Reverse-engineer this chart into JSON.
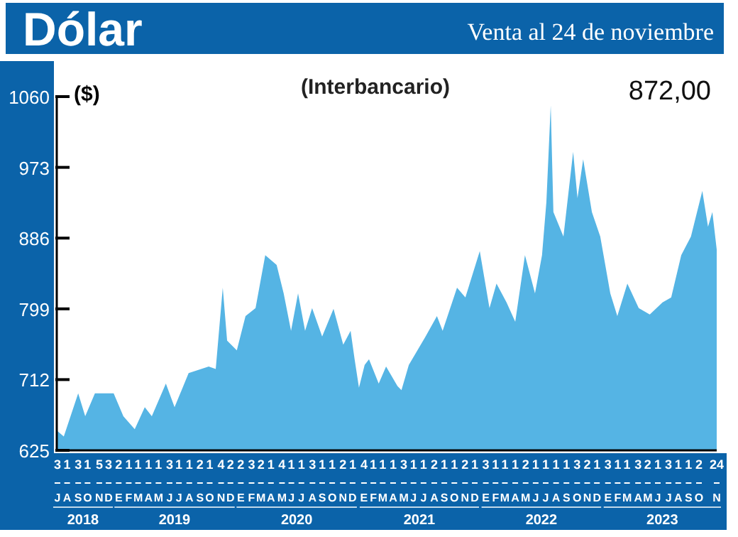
{
  "chart_data": {
    "type": "area",
    "title": "Dólar",
    "subtitle": "Venta al 24 de noviembre",
    "ylabel": "($)",
    "annotations": [
      "(Interbancario)",
      "872,00",
      "2018",
      "2019",
      "2020",
      "2021",
      "2022",
      "2023",
      "J",
      "A",
      "S",
      "O",
      "N",
      "D",
      "E",
      "F",
      "M",
      "A",
      "M",
      "J",
      "J",
      "A",
      "S",
      "O",
      "N",
      "D",
      "E",
      "F",
      "M",
      "A",
      "M",
      "J",
      "J",
      "A",
      "S",
      "O",
      "N",
      "D",
      "E",
      "F",
      "M",
      "A",
      "M",
      "J",
      "J",
      "A",
      "S",
      "O",
      "N",
      "D",
      "E",
      "F",
      "M",
      "A",
      "M",
      "J",
      "J",
      "A",
      "S",
      "O",
      "N",
      "D",
      "E",
      "F",
      "M",
      "A",
      "M",
      "J",
      "J",
      "A",
      "S",
      "O",
      "N"
    ],
    "x": [
      "2018-07-02",
      "2018-07-22",
      "2018-09-03",
      "2018-09-24",
      "2018-10-23",
      "2018-12-18",
      "2019-01-16",
      "2019-02-19",
      "2019-03-21",
      "2019-04-11",
      "2019-05-23",
      "2019-06-18",
      "2019-07-30",
      "2019-09-28",
      "2019-10-19",
      "2019-11-09",
      "2019-11-22",
      "2019-12-21",
      "2020-01-16",
      "2020-02-15",
      "2020-03-15",
      "2020-04-18",
      "2020-05-09",
      "2020-05-31",
      "2020-06-21",
      "2020-07-12",
      "2020-08-02",
      "2020-09-01",
      "2020-10-05",
      "2020-11-03",
      "2020-11-25",
      "2020-12-07",
      "2020-12-20",
      "2021-01-06",
      "2021-01-19",
      "2021-02-17",
      "2021-03-11",
      "2021-04-14",
      "2021-04-26",
      "2021-05-18",
      "2021-07-07",
      "2021-08-10",
      "2021-08-27",
      "2021-10-09",
      "2021-11-03",
      "2021-12-16",
      "2022-01-14",
      "2022-02-04",
      "2022-03-06",
      "2022-04-01",
      "2022-04-30",
      "2022-05-30",
      "2022-06-20",
      "2022-07-03",
      "2022-07-16",
      "2022-07-24",
      "2022-08-23",
      "2022-09-21",
      "2022-10-04",
      "2022-10-21",
      "2022-11-16",
      "2022-12-11",
      "2023-01-10",
      "2023-01-31",
      "2023-03-02",
      "2023-04-05",
      "2023-05-08",
      "2023-06-15",
      "2023-07-11",
      "2023-08-10",
      "2023-09-08",
      "2023-10-12",
      "2023-10-29",
      "2023-11-11",
      "2023-11-24"
    ],
    "series": [
      {
        "color": "#55b4e4",
        "values": [
          649,
          642,
          695,
          667,
          695,
          695,
          667,
          651,
          678,
          667,
          707,
          678,
          720,
          728,
          725,
          825,
          760,
          748,
          790,
          800,
          865,
          853,
          818,
          772,
          818,
          772,
          800,
          765,
          799,
          755,
          772,
          737,
          702,
          730,
          737,
          707,
          728,
          704,
          699,
          730,
          765,
          790,
          772,
          825,
          813,
          870,
          800,
          830,
          807,
          783,
          865,
          818,
          865,
          930,
          1049,
          918,
          888,
          992,
          935,
          983,
          918,
          888,
          818,
          790,
          830,
          800,
          792,
          807,
          813,
          865,
          888,
          944,
          900,
          918,
          872
        ]
      }
    ],
    "xlim": [
      "2018-07-01",
      "2023-11-24"
    ],
    "xticks": [
      {
        "value": "2018-07-03",
        "label": "3"
      },
      {
        "value": "2018-08-01",
        "label": "1"
      },
      {
        "value": "2018-09-03",
        "label": "3"
      },
      {
        "value": "2018-10-01",
        "label": "1"
      },
      {
        "value": "2018-11-05",
        "label": "5"
      },
      {
        "value": "2018-12-03",
        "label": "3"
      },
      {
        "value": "2019-01-02",
        "label": "2"
      },
      {
        "value": "2019-02-01",
        "label": "1"
      },
      {
        "value": "2019-03-01",
        "label": "1"
      },
      {
        "value": "2019-04-01",
        "label": "1"
      },
      {
        "value": "2019-05-01",
        "label": "1"
      },
      {
        "value": "2019-06-03",
        "label": "3"
      },
      {
        "value": "2019-07-01",
        "label": "1"
      },
      {
        "value": "2019-08-01",
        "label": "1"
      },
      {
        "value": "2019-09-02",
        "label": "2"
      },
      {
        "value": "2019-10-01",
        "label": "1"
      },
      {
        "value": "2019-11-04",
        "label": "4"
      },
      {
        "value": "2019-12-02",
        "label": "2"
      },
      {
        "value": "2020-01-02",
        "label": "2"
      },
      {
        "value": "2020-02-03",
        "label": "3"
      },
      {
        "value": "2020-03-02",
        "label": "2"
      },
      {
        "value": "2020-04-01",
        "label": "1"
      },
      {
        "value": "2020-05-04",
        "label": "4"
      },
      {
        "value": "2020-06-01",
        "label": "1"
      },
      {
        "value": "2020-07-01",
        "label": "1"
      },
      {
        "value": "2020-08-03",
        "label": "3"
      },
      {
        "value": "2020-09-01",
        "label": "1"
      },
      {
        "value": "2020-10-01",
        "label": "1"
      },
      {
        "value": "2020-11-02",
        "label": "2"
      },
      {
        "value": "2020-12-01",
        "label": "1"
      },
      {
        "value": "2021-01-04",
        "label": "4"
      },
      {
        "value": "2021-02-01",
        "label": "1"
      },
      {
        "value": "2021-03-01",
        "label": "1"
      },
      {
        "value": "2021-04-01",
        "label": "1"
      },
      {
        "value": "2021-05-03",
        "label": "3"
      },
      {
        "value": "2021-06-01",
        "label": "1"
      },
      {
        "value": "2021-07-01",
        "label": "1"
      },
      {
        "value": "2021-08-02",
        "label": "2"
      },
      {
        "value": "2021-09-01",
        "label": "1"
      },
      {
        "value": "2021-10-01",
        "label": "1"
      },
      {
        "value": "2021-11-02",
        "label": "2"
      },
      {
        "value": "2021-12-01",
        "label": "1"
      },
      {
        "value": "2022-01-03",
        "label": "3"
      },
      {
        "value": "2022-02-01",
        "label": "1"
      },
      {
        "value": "2022-03-01",
        "label": "1"
      },
      {
        "value": "2022-04-01",
        "label": "1"
      },
      {
        "value": "2022-05-02",
        "label": "2"
      },
      {
        "value": "2022-06-01",
        "label": "1"
      },
      {
        "value": "2022-07-01",
        "label": "1"
      },
      {
        "value": "2022-08-01",
        "label": "1"
      },
      {
        "value": "2022-09-01",
        "label": "1"
      },
      {
        "value": "2022-10-03",
        "label": "3"
      },
      {
        "value": "2022-11-02",
        "label": "2"
      },
      {
        "value": "2022-12-01",
        "label": "1"
      },
      {
        "value": "2023-01-03",
        "label": "3"
      },
      {
        "value": "2023-02-01",
        "label": "1"
      },
      {
        "value": "2023-03-01",
        "label": "1"
      },
      {
        "value": "2023-04-03",
        "label": "3"
      },
      {
        "value": "2023-05-02",
        "label": "2"
      },
      {
        "value": "2023-06-01",
        "label": "1"
      },
      {
        "value": "2023-07-03",
        "label": "3"
      },
      {
        "value": "2023-08-01",
        "label": "1"
      },
      {
        "value": "2023-09-01",
        "label": "1"
      },
      {
        "value": "2023-10-02",
        "label": "2"
      },
      {
        "value": "2023-11-24",
        "label": "24"
      }
    ],
    "ylim": [
      625,
      1060
    ],
    "yticks": [
      625,
      712,
      799,
      886,
      973,
      1060
    ],
    "grid": false,
    "legend": false
  }
}
